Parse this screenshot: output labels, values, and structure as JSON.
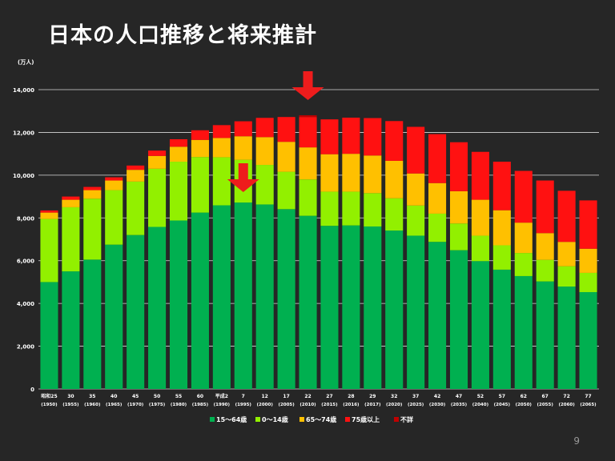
{
  "slide": {
    "title": "日本の人口推移と将来推計",
    "page_number": "9"
  },
  "chart_data": {
    "type": "bar",
    "stacked": true,
    "ylabel": "(万人)",
    "ylim": [
      0,
      14000
    ],
    "yticks": [
      "0",
      "2,000",
      "4,000",
      "6,000",
      "8,000",
      "10,000",
      "12,000",
      "14,000"
    ],
    "grid": true,
    "legend_position": "bottom",
    "categories": [
      [
        "昭和25",
        "(1950)"
      ],
      [
        "30",
        "(1955)"
      ],
      [
        "35",
        "(1960)"
      ],
      [
        "40",
        "(1965)"
      ],
      [
        "45",
        "(1970)"
      ],
      [
        "50",
        "(1975)"
      ],
      [
        "55",
        "(1980)"
      ],
      [
        "60",
        "(1985)"
      ],
      [
        "平成2",
        "(1990)"
      ],
      [
        "7",
        "(1995)"
      ],
      [
        "12",
        "(2000)"
      ],
      [
        "17",
        "(2005)"
      ],
      [
        "22",
        "(2010)"
      ],
      [
        "27",
        "(2015)"
      ],
      [
        "28",
        "(2016)"
      ],
      [
        "29",
        "(2017)"
      ],
      [
        "32",
        "(2020)"
      ],
      [
        "37",
        "(2025)"
      ],
      [
        "42",
        "(2030)"
      ],
      [
        "47",
        "(2035)"
      ],
      [
        "52",
        "(2040)"
      ],
      [
        "57",
        "(2045)"
      ],
      [
        "62",
        "(2050)"
      ],
      [
        "67",
        "(2055)"
      ],
      [
        "72",
        "(2060)"
      ],
      [
        "77",
        "(2065)"
      ]
    ],
    "series": [
      {
        "name": "15～64歳",
        "color": "#00b050",
        "values": [
          5000,
          5500,
          6050,
          6750,
          7200,
          7580,
          7880,
          8250,
          8590,
          8720,
          8630,
          8410,
          8100,
          7630,
          7650,
          7600,
          7410,
          7170,
          6880,
          6490,
          5980,
          5580,
          5280,
          5030,
          4790,
          4530
        ]
      },
      {
        "name": "0～14歳",
        "color": "#92f000",
        "values": [
          2950,
          3000,
          2850,
          2550,
          2500,
          2720,
          2750,
          2600,
          2250,
          2000,
          1850,
          1750,
          1700,
          1600,
          1580,
          1560,
          1510,
          1410,
          1320,
          1250,
          1190,
          1140,
          1080,
          1010,
          950,
          900
        ]
      },
      {
        "name": "65～74歳",
        "color": "#ffc000",
        "values": [
          300,
          350,
          400,
          450,
          550,
          600,
          700,
          800,
          900,
          1100,
          1300,
          1400,
          1500,
          1750,
          1770,
          1760,
          1750,
          1500,
          1430,
          1510,
          1680,
          1640,
          1420,
          1250,
          1140,
          1130
        ]
      },
      {
        "name": "75歳以上",
        "color": "#ff1111",
        "values": [
          100,
          150,
          150,
          150,
          200,
          250,
          350,
          450,
          600,
          700,
          900,
          1160,
          1420,
          1630,
          1690,
          1750,
          1860,
          2180,
          2290,
          2290,
          2240,
          2270,
          2420,
          2460,
          2390,
          2260
        ]
      },
      {
        "name": "不詳",
        "color": "#c00000",
        "values": [
          0,
          0,
          0,
          0,
          0,
          0,
          0,
          0,
          0,
          0,
          0,
          0,
          80,
          0,
          0,
          0,
          0,
          0,
          0,
          0,
          0,
          0,
          0,
          0,
          0,
          0
        ]
      }
    ]
  }
}
